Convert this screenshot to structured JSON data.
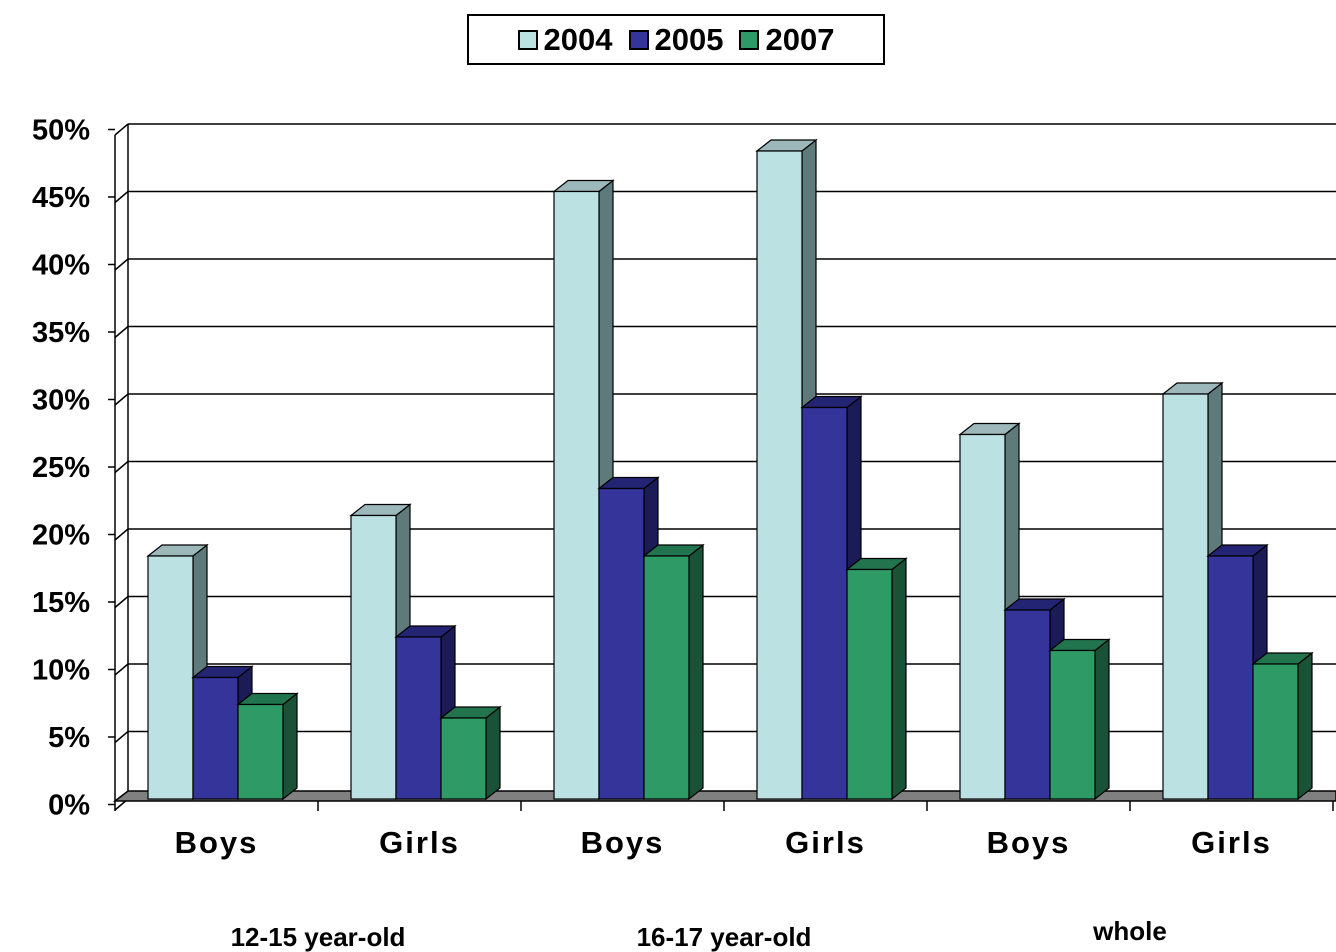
{
  "chart_data": {
    "type": "bar",
    "title": "",
    "xlabel": "",
    "ylabel": "",
    "ylim": [
      0,
      0.5
    ],
    "y_ticks": [
      "0%",
      "5%",
      "10%",
      "15%",
      "20%",
      "25%",
      "30%",
      "35%",
      "40%",
      "45%",
      "50%"
    ],
    "grid": true,
    "legend_position": "top-center",
    "categories": [
      "Boys",
      "Girls",
      "Boys",
      "Girls",
      "Boys",
      "Girls"
    ],
    "groups": [
      "12-15 year-old",
      "16-17 year-old",
      "whole"
    ],
    "series": [
      {
        "name": "2004",
        "color": "#BBE1E3",
        "side_color": "#5E7A7A",
        "top_color": "#9DB8BA",
        "values": [
          0.18,
          0.21,
          0.45,
          0.48,
          0.27,
          0.3
        ]
      },
      {
        "name": "2005",
        "color": "#34349A",
        "side_color": "#1B1B57",
        "top_color": "#242474",
        "values": [
          0.09,
          0.12,
          0.23,
          0.29,
          0.14,
          0.18
        ]
      },
      {
        "name": "2007",
        "color": "#2E9A66",
        "side_color": "#1A5238",
        "top_color": "#22744E",
        "values": [
          0.07,
          0.06,
          0.18,
          0.17,
          0.11,
          0.1
        ]
      }
    ]
  }
}
